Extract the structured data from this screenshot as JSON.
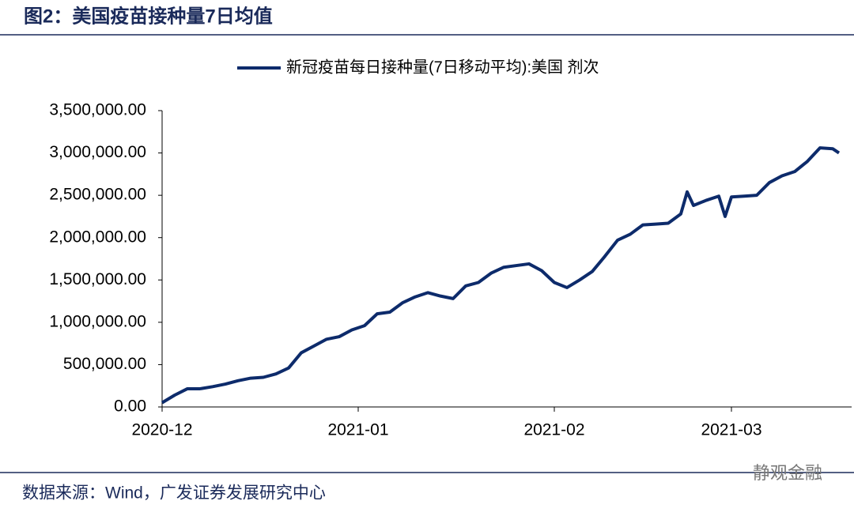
{
  "chart_data": {
    "type": "line",
    "title": "图2：美国疫苗接种量7日均值",
    "source": "数据来源：Wind，广发证券发展研究中心",
    "watermark": "静观金融",
    "series": [
      {
        "name": "新冠疫苗每日接种量(7日移动平均):美国 剂次",
        "color": "#0d2b6b",
        "x": [
          0,
          2,
          4,
          6,
          8,
          10,
          12,
          14,
          16,
          18,
          20,
          22,
          24,
          26,
          28,
          30,
          32,
          34,
          36,
          38,
          40,
          42,
          44,
          46,
          48,
          50,
          52,
          54,
          56,
          58,
          60,
          62,
          64,
          66,
          68,
          70,
          72,
          74,
          76,
          78,
          80,
          82,
          83,
          84,
          86,
          88,
          89,
          90,
          92,
          94,
          96,
          98,
          100,
          102,
          104,
          106,
          107
        ],
        "values": [
          50000,
          140000,
          215000,
          215000,
          240000,
          270000,
          310000,
          340000,
          350000,
          390000,
          460000,
          640000,
          720000,
          800000,
          830000,
          910000,
          960000,
          1100000,
          1120000,
          1230000,
          1300000,
          1350000,
          1310000,
          1280000,
          1430000,
          1470000,
          1580000,
          1650000,
          1670000,
          1690000,
          1610000,
          1470000,
          1410000,
          1500000,
          1600000,
          1780000,
          1970000,
          2040000,
          2150000,
          2160000,
          2170000,
          2280000,
          2540000,
          2380000,
          2440000,
          2490000,
          2250000,
          2480000,
          2490000,
          2500000,
          2650000,
          2730000,
          2780000,
          2900000,
          3060000,
          3050000,
          3000000
        ]
      }
    ],
    "xlim": [
      0,
      109
    ],
    "xticks": [
      {
        "value": 0,
        "label": "2020-12"
      },
      {
        "value": 31,
        "label": "2021-01"
      },
      {
        "value": 62,
        "label": "2021-02"
      },
      {
        "value": 90,
        "label": "2021-03"
      }
    ],
    "ylim": [
      0,
      3500000
    ],
    "yticks": [
      {
        "value": 0,
        "label": "0.00"
      },
      {
        "value": 500000,
        "label": "500,000.00"
      },
      {
        "value": 1000000,
        "label": "1,000,000.00"
      },
      {
        "value": 1500000,
        "label": "1,500,000.00"
      },
      {
        "value": 2000000,
        "label": "2,000,000.00"
      },
      {
        "value": 2500000,
        "label": "2,500,000.00"
      },
      {
        "value": 3000000,
        "label": "3,000,000.00"
      },
      {
        "value": 3500000,
        "label": "3,500,000.00"
      }
    ],
    "grid": false
  }
}
